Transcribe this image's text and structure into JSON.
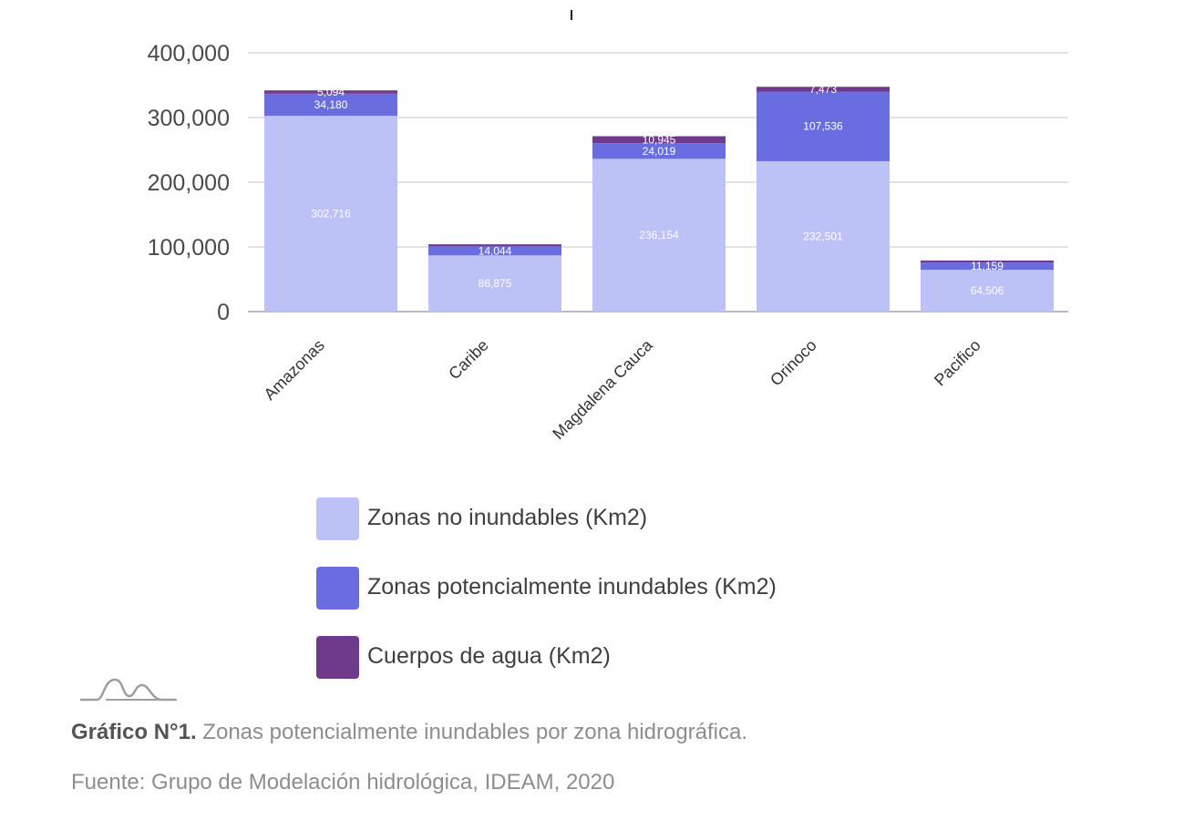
{
  "chart_data": {
    "type": "bar",
    "stacked": true,
    "title": "",
    "xlabel": "",
    "ylabel": "",
    "ylim": [
      0,
      400000
    ],
    "yticks": [
      0,
      100000,
      200000,
      300000,
      400000
    ],
    "ytick_labels": [
      "0",
      "100,000",
      "200,000",
      "300,000",
      "400,000"
    ],
    "grid": true,
    "legend_placement": "bottom",
    "categories": [
      "Amazonas",
      "Caribe",
      "Magdalena Cauca",
      "Orinoco",
      "Pacifico"
    ],
    "series": [
      {
        "name": "Zonas no inundables (Km2)",
        "color": "#bcc2f6",
        "values": [
          302716,
          86875,
          236154,
          232501,
          64506
        ],
        "labels": [
          "302,716",
          "86,875",
          "236,154",
          "232,501",
          "64,506"
        ]
      },
      {
        "name": "Zonas potencialmente inundables (Km2)",
        "color": "#6a6ddf",
        "values": [
          34180,
          14044,
          24019,
          107536,
          11159
        ],
        "labels": [
          "34,180",
          "14,044",
          "24,019",
          "107,536",
          "11,159"
        ]
      },
      {
        "name": "Cuerpos de agua (Km2)",
        "color": "#6f3a8c",
        "values": [
          5094,
          3100,
          10945,
          7473,
          3300
        ],
        "labels": [
          "5,094",
          "",
          "10,945",
          "7,473",
          ""
        ]
      }
    ]
  },
  "caption": {
    "bold": "Gráfico N°1.",
    "text": " Zonas potencialmente inundables por zona hidrográfica."
  },
  "source": "Fuente: Grupo de Modelación hidrológica, IDEAM, 2020",
  "logo_icon": "mountains-logo-icon"
}
